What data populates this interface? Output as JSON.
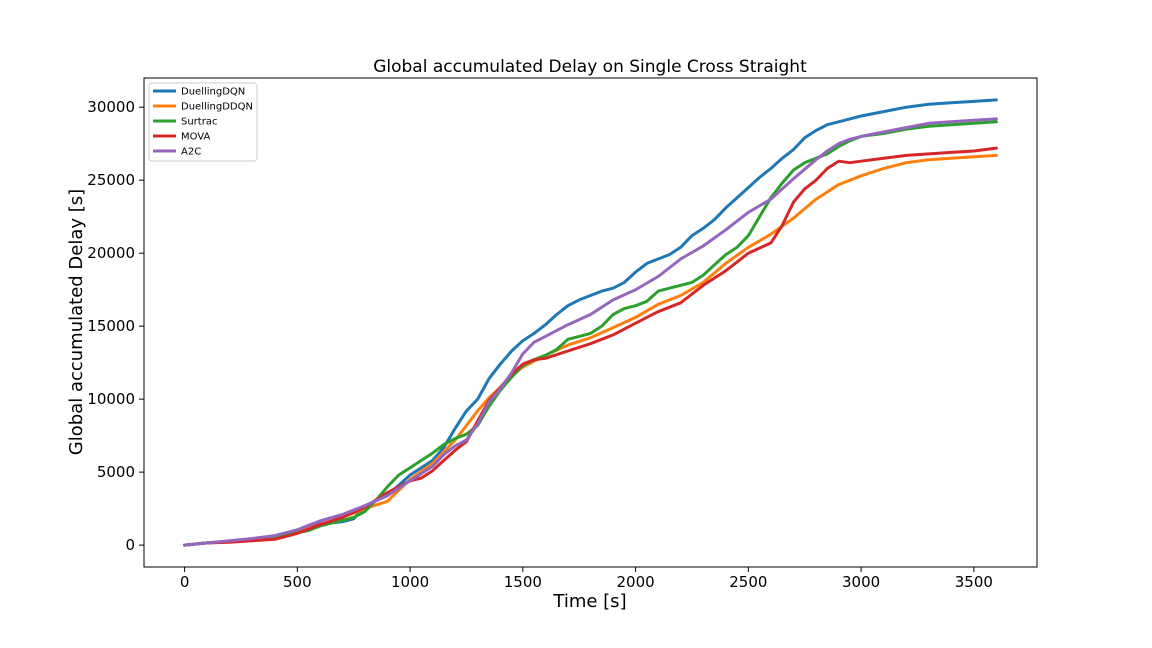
{
  "chart_data": {
    "type": "line",
    "title": "Global accumulated Delay on Single Cross Straight",
    "xlabel": "Time [s]",
    "ylabel": "Global accumulated Delay [s]",
    "xlim": [
      -180,
      3780
    ],
    "ylim": [
      -1500,
      32000
    ],
    "xticks": [
      0,
      500,
      1000,
      1500,
      2000,
      2500,
      3000,
      3500
    ],
    "yticks": [
      0,
      5000,
      10000,
      15000,
      20000,
      25000,
      30000
    ],
    "legend_position": "upper-left",
    "grid": false,
    "series": [
      {
        "name": "DuellingDQN",
        "color": "#1f77b4",
        "x": [
          0,
          100,
          200,
          300,
          400,
          500,
          600,
          700,
          750,
          800,
          900,
          1000,
          1100,
          1150,
          1200,
          1250,
          1300,
          1350,
          1400,
          1450,
          1500,
          1550,
          1600,
          1650,
          1700,
          1750,
          1800,
          1850,
          1900,
          1950,
          2000,
          2050,
          2100,
          2150,
          2200,
          2250,
          2300,
          2350,
          2400,
          2450,
          2500,
          2550,
          2600,
          2650,
          2700,
          2750,
          2800,
          2850,
          2900,
          2950,
          3000,
          3100,
          3200,
          3300,
          3400,
          3500,
          3600
        ],
        "y": [
          0,
          150,
          250,
          350,
          550,
          950,
          1450,
          1600,
          1800,
          2700,
          3400,
          4800,
          5800,
          6700,
          8000,
          9200,
          10000,
          11400,
          12400,
          13300,
          14000,
          14500,
          15100,
          15800,
          16400,
          16800,
          17100,
          17400,
          17600,
          18000,
          18700,
          19300,
          19600,
          19900,
          20400,
          21200,
          21700,
          22300,
          23100,
          23800,
          24500,
          25200,
          25800,
          26500,
          27100,
          27900,
          28400,
          28800,
          29000,
          29200,
          29400,
          29700,
          30000,
          30200,
          30300,
          30400,
          30500
        ]
      },
      {
        "name": "DuellingDDQN",
        "color": "#ff7f0e",
        "x": [
          0,
          100,
          200,
          300,
          400,
          500,
          600,
          700,
          800,
          900,
          1000,
          1100,
          1200,
          1250,
          1300,
          1350,
          1400,
          1450,
          1500,
          1600,
          1700,
          1800,
          1900,
          2000,
          2100,
          2200,
          2300,
          2400,
          2500,
          2600,
          2700,
          2800,
          2900,
          3000,
          3100,
          3200,
          3300,
          3400,
          3500,
          3600
        ],
        "y": [
          0,
          150,
          250,
          350,
          500,
          900,
          1400,
          1900,
          2500,
          3000,
          4500,
          5600,
          7200,
          8200,
          9200,
          10100,
          10800,
          11600,
          12200,
          13000,
          13700,
          14200,
          14900,
          15600,
          16500,
          17100,
          18000,
          19300,
          20400,
          21300,
          22400,
          23700,
          24700,
          25300,
          25800,
          26200,
          26400,
          26500,
          26600,
          26700
        ]
      },
      {
        "name": "Surtrac",
        "color": "#2ca02c",
        "x": [
          0,
          100,
          200,
          300,
          400,
          500,
          550,
          600,
          650,
          700,
          750,
          800,
          850,
          900,
          950,
          1000,
          1050,
          1100,
          1150,
          1200,
          1250,
          1300,
          1350,
          1400,
          1450,
          1500,
          1550,
          1600,
          1650,
          1700,
          1750,
          1800,
          1850,
          1900,
          1950,
          2000,
          2050,
          2100,
          2150,
          2200,
          2250,
          2300,
          2350,
          2400,
          2450,
          2500,
          2550,
          2600,
          2650,
          2700,
          2750,
          2800,
          2850,
          2900,
          2950,
          3000,
          3050,
          3100,
          3200,
          3300,
          3400,
          3500,
          3600
        ],
        "y": [
          0,
          150,
          250,
          350,
          500,
          850,
          1000,
          1300,
          1500,
          1700,
          1900,
          2300,
          3100,
          4000,
          4800,
          5300,
          5800,
          6300,
          6900,
          7300,
          7600,
          8200,
          9500,
          10600,
          11500,
          12300,
          12700,
          13000,
          13400,
          14100,
          14300,
          14500,
          15000,
          15800,
          16200,
          16400,
          16700,
          17400,
          17600,
          17800,
          18000,
          18500,
          19200,
          19900,
          20400,
          21200,
          22500,
          23800,
          24800,
          25700,
          26200,
          26500,
          26800,
          27300,
          27700,
          28000,
          28100,
          28200,
          28500,
          28700,
          28800,
          28900,
          29000
        ]
      },
      {
        "name": "MOVA",
        "color": "#d62728",
        "x": [
          0,
          100,
          200,
          300,
          400,
          500,
          600,
          700,
          800,
          900,
          1000,
          1050,
          1100,
          1150,
          1200,
          1250,
          1300,
          1350,
          1400,
          1450,
          1500,
          1550,
          1600,
          1700,
          1800,
          1900,
          2000,
          2100,
          2200,
          2300,
          2400,
          2500,
          2600,
          2650,
          2700,
          2750,
          2800,
          2850,
          2900,
          2950,
          3000,
          3100,
          3200,
          3300,
          3400,
          3500,
          3600
        ],
        "y": [
          0,
          150,
          200,
          300,
          400,
          800,
          1400,
          1900,
          2600,
          3600,
          4400,
          4600,
          5100,
          5800,
          6500,
          7100,
          8500,
          9900,
          10800,
          11700,
          12400,
          12700,
          12800,
          13300,
          13800,
          14400,
          15200,
          16000,
          16600,
          17800,
          18800,
          20000,
          20700,
          21900,
          23500,
          24400,
          25000,
          25800,
          26300,
          26200,
          26300,
          26500,
          26700,
          26800,
          26900,
          27000,
          27200
        ]
      },
      {
        "name": "A2C",
        "color": "#9467bd",
        "x": [
          0,
          100,
          200,
          300,
          400,
          500,
          600,
          700,
          800,
          900,
          1000,
          1100,
          1150,
          1200,
          1250,
          1300,
          1350,
          1400,
          1450,
          1500,
          1550,
          1600,
          1700,
          1800,
          1900,
          2000,
          2100,
          2200,
          2300,
          2400,
          2500,
          2600,
          2700,
          2800,
          2850,
          2900,
          2950,
          3000,
          3100,
          3200,
          3300,
          3400,
          3500,
          3600
        ],
        "y": [
          0,
          150,
          300,
          450,
          650,
          1050,
          1650,
          2100,
          2700,
          3400,
          4400,
          5400,
          6200,
          6800,
          7200,
          8300,
          9800,
          10700,
          11800,
          13100,
          13900,
          14300,
          15100,
          15800,
          16800,
          17500,
          18400,
          19600,
          20500,
          21600,
          22800,
          23700,
          25100,
          26400,
          27000,
          27500,
          27800,
          28000,
          28300,
          28600,
          28900,
          29000,
          29100,
          29200
        ]
      }
    ]
  }
}
